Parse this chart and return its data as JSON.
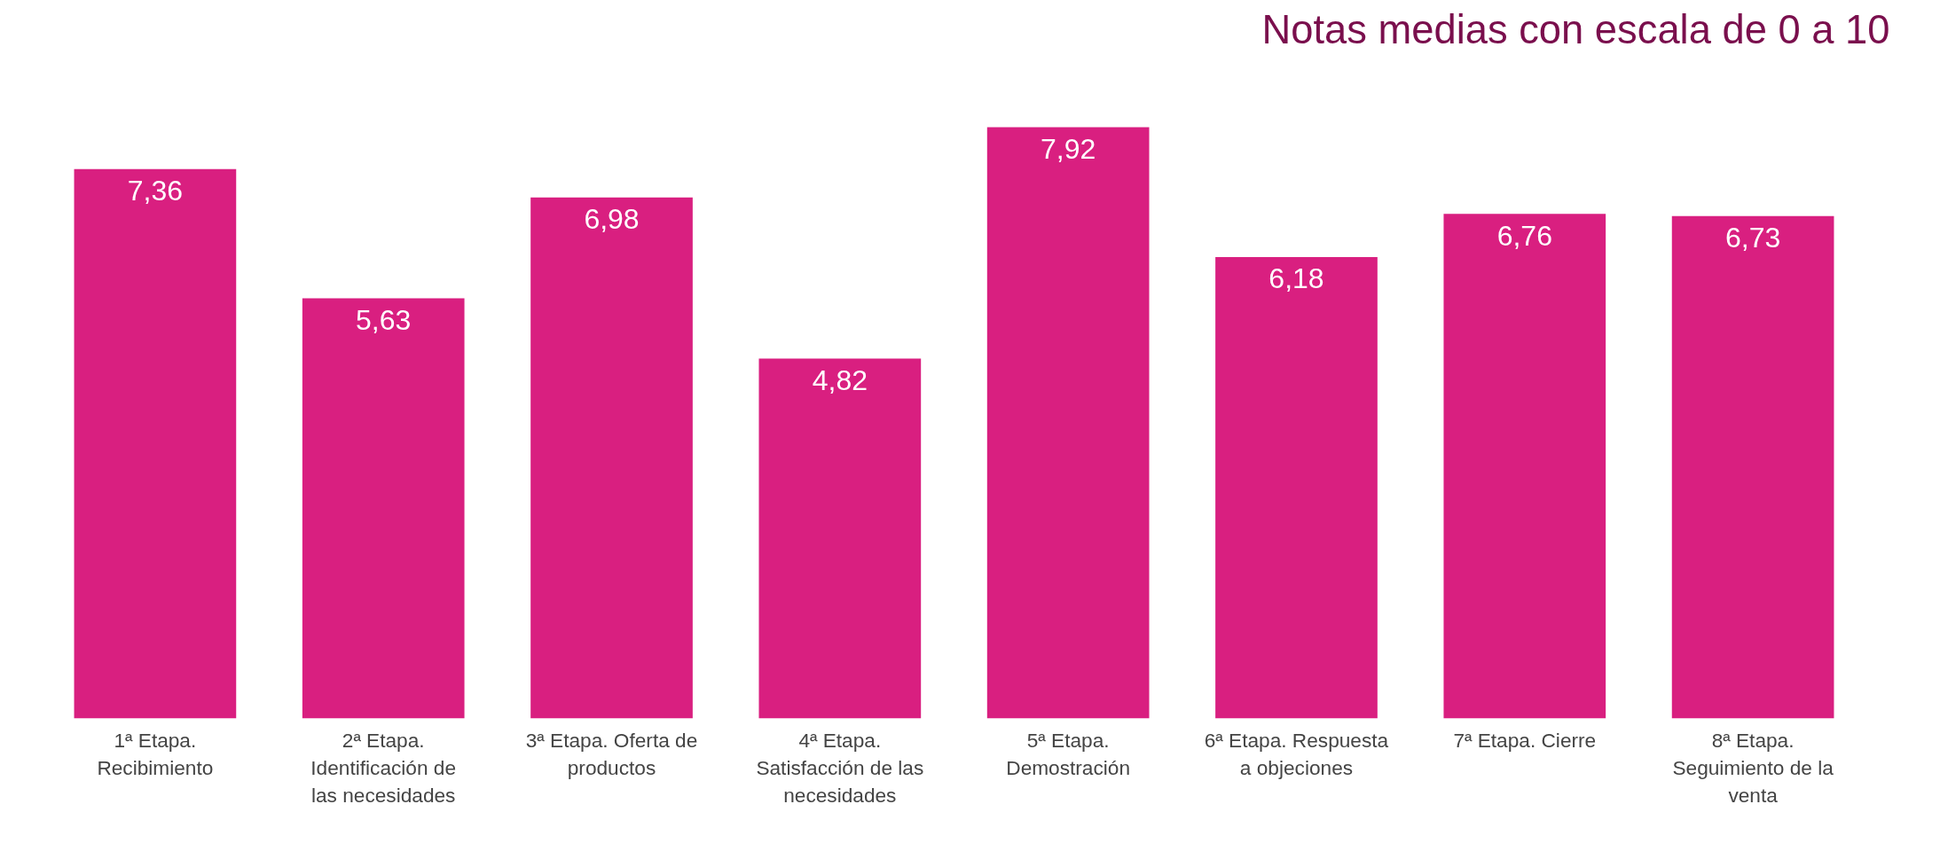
{
  "chart_data": {
    "type": "bar",
    "title": "Notas medias con escala de 0 a 10",
    "categories": [
      "1ª Etapa. Recibimiento",
      "2ª Etapa. Identificación de las necesidades",
      "3ª Etapa. Oferta de productos",
      "4ª Etapa. Satisfacción de las necesidades",
      "5ª Etapa. Demostración",
      "6ª Etapa. Respuesta a objeciones",
      "7ª Etapa. Cierre",
      "8ª Etapa. Seguimiento de la venta"
    ],
    "values": [
      7.36,
      5.63,
      6.98,
      4.82,
      7.92,
      6.18,
      6.76,
      6.73
    ],
    "value_labels": [
      "7,36",
      "5,63",
      "6,98",
      "4,82",
      "7,92",
      "6,18",
      "6,76",
      "6,73"
    ],
    "color": "#d91f80",
    "grid": false
  }
}
